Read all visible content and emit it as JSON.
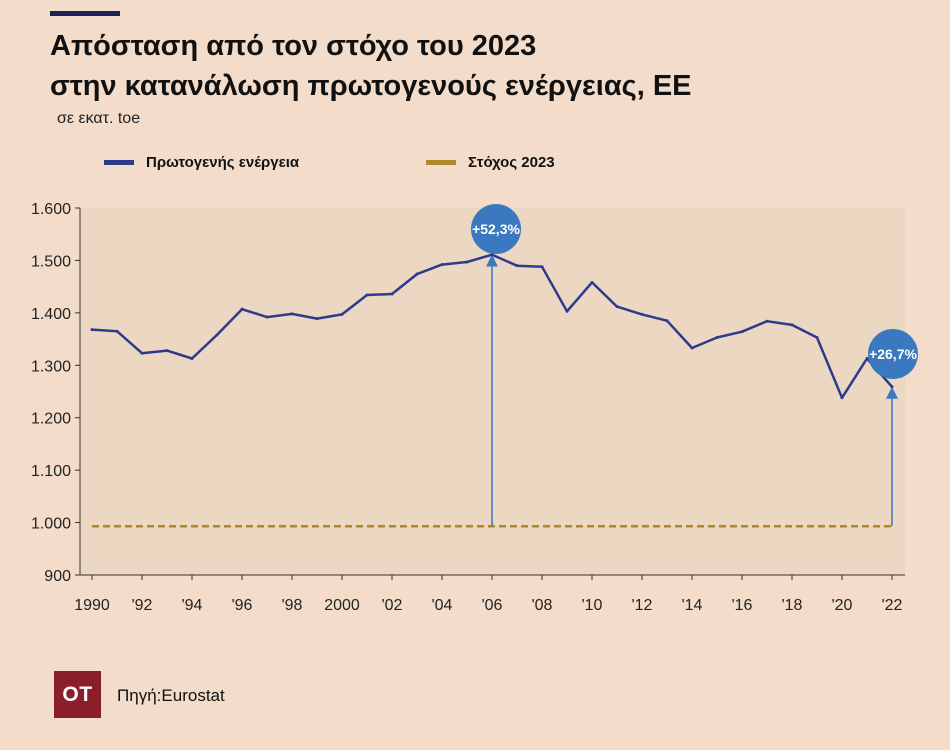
{
  "title_line1": "Απόσταση από τον στόχο του 2023",
  "title_line2": "στην κατανάλωση πρωτογενούς ενέργειας, ΕΕ",
  "subtitle": "σε εκατ. toe",
  "source": "Πηγή:Eurostat",
  "logo_text": "OT",
  "colors": {
    "background": "#f3ddca",
    "plot_background": "#ecd7c3",
    "primary_line": "#2e3a8c",
    "target_line": "#b08a2a",
    "callout": "#3a79c0",
    "logo": "#8a1e2a"
  },
  "chart_data": {
    "type": "line",
    "x": [
      1990,
      1991,
      1992,
      1993,
      1994,
      1995,
      1996,
      1997,
      1998,
      1999,
      2000,
      2001,
      2002,
      2003,
      2004,
      2005,
      2006,
      2007,
      2008,
      2009,
      2010,
      2011,
      2012,
      2013,
      2014,
      2015,
      2016,
      2017,
      2018,
      2019,
      2020,
      2021,
      2022
    ],
    "series": [
      {
        "name": "Πρωτογενής ενέργεια",
        "color": "#2e3a8c",
        "values": [
          1368,
          1365,
          1323,
          1328,
          1313,
          1358,
          1407,
          1392,
          1398,
          1389,
          1397,
          1434,
          1436,
          1474,
          1492,
          1497,
          1511,
          1490,
          1488,
          1403,
          1458,
          1412,
          1397,
          1385,
          1333,
          1353,
          1364,
          1384,
          1377,
          1353,
          1238,
          1313,
          1259
        ]
      },
      {
        "name": "Στόχος 2023",
        "color": "#b08a2a",
        "style": "dashed",
        "values": [
          993,
          993,
          993,
          993,
          993,
          993,
          993,
          993,
          993,
          993,
          993,
          993,
          993,
          993,
          993,
          993,
          993,
          993,
          993,
          993,
          993,
          993,
          993,
          993,
          993,
          993,
          993,
          993,
          993,
          993,
          993,
          993,
          993
        ]
      }
    ],
    "ylim": [
      900,
      1600
    ],
    "yticks": [
      900,
      1000,
      1100,
      1200,
      1300,
      1400,
      1500,
      1600
    ],
    "ytick_labels": [
      "900",
      "1.000",
      "1.100",
      "1.200",
      "1.300",
      "1.400",
      "1.500",
      "1.600"
    ],
    "xticks": [
      1990,
      1992,
      1994,
      1996,
      1998,
      2000,
      2002,
      2004,
      2006,
      2008,
      2010,
      2012,
      2014,
      2016,
      2018,
      2020,
      2022
    ],
    "xtick_labels": [
      "1990",
      "'92",
      "'94",
      "'96",
      "'98",
      "2000",
      "'02",
      "'04",
      "'06",
      "'08",
      "'10",
      "'12",
      "'14",
      "'16",
      "'18",
      "'20",
      "'22"
    ],
    "annotations": [
      {
        "x": 2006,
        "y": 1511,
        "label": "+52,3%"
      },
      {
        "x": 2022,
        "y": 1259,
        "label": "+26,7%"
      }
    ],
    "legend_position": "top-left",
    "grid": false
  }
}
